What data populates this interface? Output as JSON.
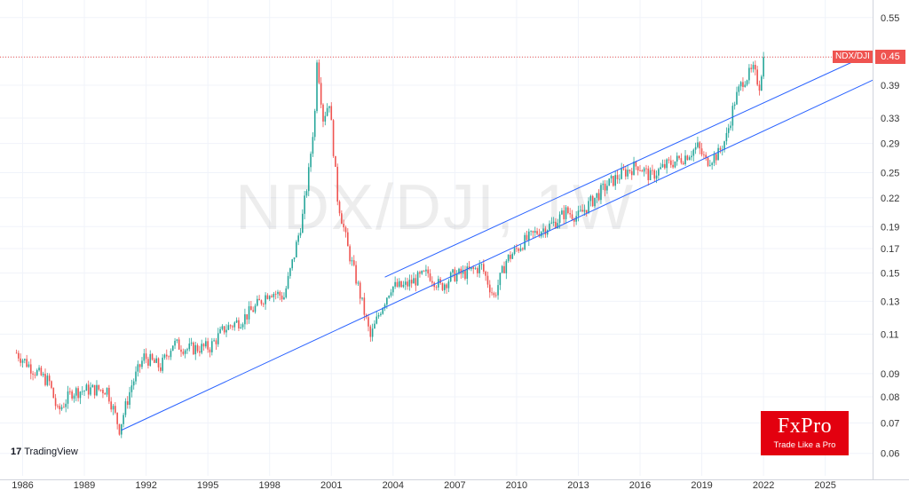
{
  "chart_data": {
    "type": "candlestick",
    "symbol": "NDX/DJI",
    "watermark": "NDX/DJI, 1W",
    "last_value_label": "0.45",
    "last_value": 0.45,
    "y_scale": "log",
    "ylim": [
      0.055,
      0.58
    ],
    "xlim": [
      1984.9,
      2027.3
    ],
    "y_ticks": [
      0.55,
      0.45,
      0.39,
      0.33,
      0.29,
      0.25,
      0.22,
      0.19,
      0.17,
      0.15,
      0.13,
      0.11,
      0.09,
      0.08,
      0.07,
      0.06
    ],
    "y_tick_labels": [
      "0.55",
      "0.45",
      "0.39",
      "0.33",
      "0.29",
      "0.25",
      "0.22",
      "0.19",
      "0.17",
      "0.15",
      "0.13",
      "0.11",
      "0.09",
      "0.08",
      "0.07",
      "0.06"
    ],
    "x_ticks": [
      1986,
      1989,
      1992,
      1995,
      1998,
      2001,
      2004,
      2007,
      2010,
      2013,
      2016,
      2019,
      2022,
      2025
    ],
    "x_tick_labels": [
      "1986",
      "1989",
      "1992",
      "1995",
      "1998",
      "2001",
      "2004",
      "2007",
      "2010",
      "2013",
      "2016",
      "2019",
      "2022",
      "2025"
    ],
    "price_anchors": [
      [
        1985.7,
        0.1
      ],
      [
        1986.5,
        0.092
      ],
      [
        1987.3,
        0.086
      ],
      [
        1987.7,
        0.074
      ],
      [
        1988.4,
        0.082
      ],
      [
        1989.3,
        0.083
      ],
      [
        1990.1,
        0.083
      ],
      [
        1990.7,
        0.068
      ],
      [
        1991.3,
        0.085
      ],
      [
        1991.9,
        0.098
      ],
      [
        1992.7,
        0.093
      ],
      [
        1993.3,
        0.105
      ],
      [
        1994.0,
        0.102
      ],
      [
        1995.1,
        0.103
      ],
      [
        1995.8,
        0.113
      ],
      [
        1996.6,
        0.118
      ],
      [
        1997.3,
        0.126
      ],
      [
        1998.0,
        0.137
      ],
      [
        1998.7,
        0.133
      ],
      [
        1999.2,
        0.165
      ],
      [
        1999.6,
        0.2
      ],
      [
        1999.9,
        0.25
      ],
      [
        2000.2,
        0.34
      ],
      [
        2000.28,
        0.46
      ],
      [
        2000.6,
        0.33
      ],
      [
        2000.9,
        0.36
      ],
      [
        2001.3,
        0.22
      ],
      [
        2001.8,
        0.17
      ],
      [
        2002.3,
        0.14
      ],
      [
        2002.9,
        0.108
      ],
      [
        2003.4,
        0.125
      ],
      [
        2003.9,
        0.14
      ],
      [
        2004.5,
        0.14
      ],
      [
        2005.1,
        0.145
      ],
      [
        2005.7,
        0.15
      ],
      [
        2006.3,
        0.14
      ],
      [
        2006.9,
        0.148
      ],
      [
        2007.5,
        0.15
      ],
      [
        2008.3,
        0.155
      ],
      [
        2008.9,
        0.133
      ],
      [
        2009.5,
        0.16
      ],
      [
        2010.3,
        0.175
      ],
      [
        2011.0,
        0.185
      ],
      [
        2011.8,
        0.193
      ],
      [
        2012.4,
        0.205
      ],
      [
        2013.0,
        0.2
      ],
      [
        2013.6,
        0.215
      ],
      [
        2014.4,
        0.235
      ],
      [
        2015.2,
        0.25
      ],
      [
        2015.9,
        0.26
      ],
      [
        2016.5,
        0.245
      ],
      [
        2017.3,
        0.26
      ],
      [
        2018.1,
        0.27
      ],
      [
        2018.8,
        0.285
      ],
      [
        2019.2,
        0.265
      ],
      [
        2019.8,
        0.275
      ],
      [
        2020.2,
        0.3
      ],
      [
        2020.6,
        0.36
      ],
      [
        2021.0,
        0.4
      ],
      [
        2021.5,
        0.42
      ],
      [
        2021.8,
        0.39
      ],
      [
        2022.0,
        0.45
      ]
    ],
    "trendlines": [
      {
        "name": "lower",
        "from": [
          1990.8,
          0.0675
        ],
        "to": [
          2027.3,
          0.4
        ]
      },
      {
        "name": "upper",
        "from": [
          2003.6,
          0.147
        ],
        "to": [
          2027.3,
          0.46
        ]
      }
    ],
    "colors": {
      "up": "#26a69a",
      "down": "#ef5350",
      "trendline": "#2962ff",
      "last_price_line": "#ef5350",
      "grid": "#f0f3fa",
      "fxpro_red": "#e3000f"
    }
  },
  "branding": {
    "tradingview": "TradingView",
    "fxpro_name": "FxPro",
    "fxpro_tagline": "Trade Like a Pro"
  }
}
